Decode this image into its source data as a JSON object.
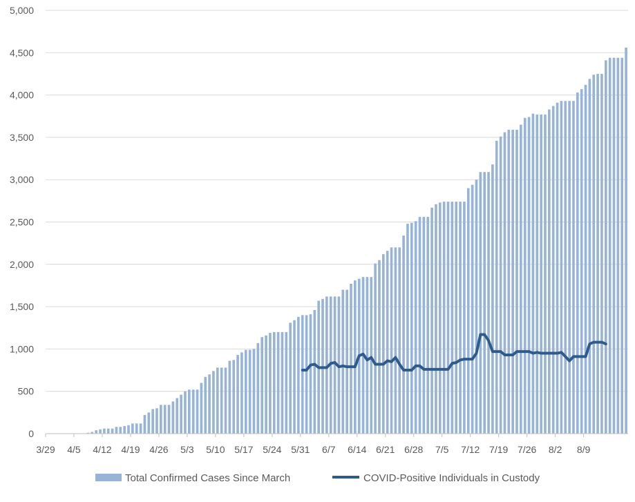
{
  "chart_data": {
    "type": "bar",
    "title": "",
    "xlabel": "",
    "ylabel": "",
    "ylim": [
      0,
      5000
    ],
    "y_ticks": [
      0,
      500,
      1000,
      1500,
      2000,
      2500,
      3000,
      3500,
      4000,
      4500,
      5000
    ],
    "y_tick_labels": [
      "0",
      "500",
      "1,000",
      "1,500",
      "2,000",
      "2,500",
      "3,000",
      "3,500",
      "4,000",
      "4,500",
      "5,000"
    ],
    "grid": true,
    "legend_position": "bottom",
    "x_labels": [
      "3/29",
      "4/5",
      "4/12",
      "4/19",
      "4/26",
      "5/3",
      "5/10",
      "5/17",
      "5/24",
      "5/31",
      "6/7",
      "6/14",
      "6/21",
      "6/28",
      "7/5",
      "7/12",
      "7/19",
      "7/26",
      "8/2",
      "8/9"
    ],
    "x_start": "3/29",
    "series": [
      {
        "name": "Total Confirmed Cases Since March",
        "type": "bar",
        "color": "#97b3d6",
        "values": [
          0,
          0,
          0,
          0,
          0,
          0,
          0,
          0,
          0,
          0,
          10,
          20,
          40,
          50,
          60,
          60,
          60,
          80,
          80,
          90,
          100,
          120,
          120,
          120,
          220,
          250,
          290,
          300,
          340,
          340,
          340,
          380,
          420,
          460,
          500,
          520,
          520,
          520,
          600,
          670,
          700,
          740,
          780,
          780,
          780,
          860,
          870,
          930,
          960,
          990,
          990,
          1000,
          1070,
          1140,
          1160,
          1190,
          1200,
          1200,
          1200,
          1200,
          1310,
          1340,
          1380,
          1400,
          1400,
          1410,
          1460,
          1570,
          1590,
          1620,
          1620,
          1620,
          1620,
          1700,
          1700,
          1770,
          1810,
          1830,
          1850,
          1850,
          1850,
          2010,
          2050,
          2120,
          2160,
          2200,
          2200,
          2200,
          2340,
          2480,
          2490,
          2510,
          2560,
          2560,
          2560,
          2670,
          2710,
          2730,
          2740,
          2740,
          2740,
          2740,
          2740,
          2740,
          2900,
          2940,
          3000,
          3090,
          3090,
          3090,
          3180,
          3460,
          3510,
          3560,
          3590,
          3590,
          3590,
          3650,
          3730,
          3740,
          3780,
          3770,
          3770,
          3770,
          3830,
          3870,
          3910,
          3930,
          3930,
          3930,
          3930,
          4030,
          4070,
          4120,
          4190,
          4240,
          4250,
          4250,
          4410,
          4440,
          4440,
          4440,
          4440,
          4560
        ]
      },
      {
        "name": "COVID-Positive Individuals in Custody",
        "type": "line",
        "color": "#2f5a8c",
        "start_index": 63,
        "values": [
          750,
          750,
          810,
          820,
          780,
          780,
          780,
          830,
          840,
          790,
          800,
          790,
          790,
          790,
          920,
          940,
          870,
          900,
          820,
          820,
          820,
          860,
          850,
          900,
          820,
          750,
          750,
          750,
          800,
          800,
          760,
          760,
          760,
          760,
          760,
          760,
          760,
          830,
          840,
          870,
          880,
          880,
          880,
          950,
          1170,
          1170,
          1100,
          970,
          970,
          970,
          930,
          930,
          930,
          970,
          970,
          970,
          970,
          950,
          960,
          950,
          950,
          950,
          950,
          950,
          960,
          910,
          860,
          910,
          910,
          910,
          910,
          1060,
          1080,
          1080,
          1080,
          1060
        ]
      }
    ]
  }
}
